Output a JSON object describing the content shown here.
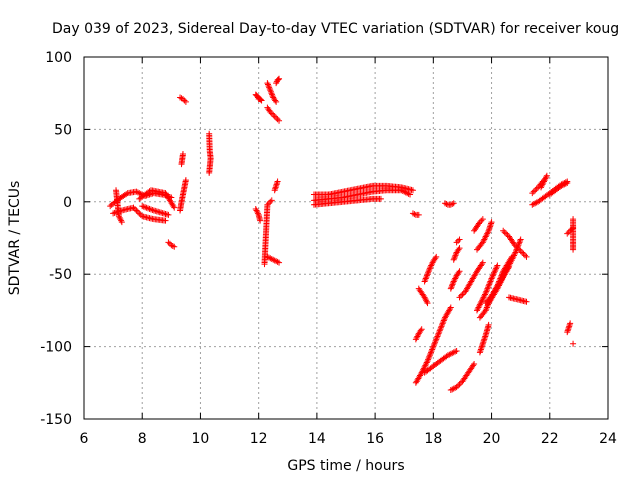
{
  "chart_data": {
    "type": "scatter",
    "title": "Day 039 of 2023, Sidereal Day-to-day VTEC variation (SDTVAR) for receiver koug",
    "xlabel": "GPS time / hours",
    "ylabel": "SDTVAR / TECUs",
    "xlim": [
      6,
      24
    ],
    "ylim": [
      -150,
      100
    ],
    "xticks": [
      6,
      8,
      10,
      12,
      14,
      16,
      18,
      20,
      22,
      24
    ],
    "yticks": [
      -150,
      -100,
      -50,
      0,
      50,
      100
    ],
    "grid": true,
    "marker": "+",
    "color": "#ff0000",
    "series": [
      {
        "name": "SDTVAR",
        "segments": [
          {
            "x": [
              6.9,
              7.2,
              7.5,
              7.8,
              8.1,
              8.4,
              8.7,
              9.0
            ],
            "y": [
              -3,
              2,
              6,
              7,
              4,
              6,
              5,
              3
            ]
          },
          {
            "x": [
              7.0,
              7.3,
              7.7,
              8.0,
              8.4,
              8.8
            ],
            "y": [
              -8,
              -6,
              -4,
              -10,
              -12,
              -13
            ]
          },
          {
            "x": [
              7.1,
              7.2,
              7.3
            ],
            "y": [
              8,
              -10,
              -14
            ]
          },
          {
            "x": [
              7.9,
              8.3,
              8.8,
              9.1
            ],
            "y": [
              2,
              8,
              6,
              -4
            ]
          },
          {
            "x": [
              8.0,
              8.4,
              8.9
            ],
            "y": [
              -3,
              -6,
              -9
            ]
          },
          {
            "x": [
              8.9,
              9.0,
              9.1
            ],
            "y": [
              -28,
              -30,
              -31
            ]
          },
          {
            "x": [
              9.3,
              9.35,
              9.4,
              9.45,
              9.5
            ],
            "y": [
              -6,
              0,
              5,
              10,
              15
            ]
          },
          {
            "x": [
              9.3,
              9.4,
              9.5
            ],
            "y": [
              72,
              71,
              69
            ]
          },
          {
            "x": [
              9.35,
              9.4
            ],
            "y": [
              26,
              33
            ]
          },
          {
            "x": [
              10.3,
              10.32,
              10.35,
              10.3
            ],
            "y": [
              47,
              35,
              30,
              20
            ]
          },
          {
            "x": [
              11.9,
              11.95,
              12.0,
              12.05,
              12.1
            ],
            "y": [
              74,
              73,
              71,
              71,
              70
            ]
          },
          {
            "x": [
              12.3,
              12.4,
              12.5,
              12.6
            ],
            "y": [
              82,
              77,
              72,
              69
            ]
          },
          {
            "x": [
              12.6,
              12.65,
              12.7
            ],
            "y": [
              82,
              84,
              85
            ]
          },
          {
            "x": [
              12.3,
              12.4,
              12.5,
              12.6,
              12.7
            ],
            "y": [
              65,
              62,
              60,
              58,
              56
            ]
          },
          {
            "x": [
              11.9,
              12.0,
              12.05
            ],
            "y": [
              -5,
              -9,
              -13
            ]
          },
          {
            "x": [
              12.3,
              12.4,
              12.5,
              12.6,
              12.7
            ],
            "y": [
              -38,
              -39,
              -40,
              -41,
              -42
            ]
          },
          {
            "x": [
              12.2,
              12.3,
              12.45
            ],
            "y": [
              -43,
              -2,
              1
            ]
          },
          {
            "x": [
              12.55,
              12.6,
              12.65
            ],
            "y": [
              8,
              11,
              14
            ]
          },
          {
            "x": [
              13.9,
              14.4,
              14.9,
              15.4,
              15.9,
              16.4,
              16.9,
              17.3
            ],
            "y": [
              5,
              5,
              7,
              9,
              11,
              11,
              10,
              8
            ]
          },
          {
            "x": [
              13.9,
              14.4,
              14.9,
              15.4,
              15.9,
              16.2
            ],
            "y": [
              -2,
              -1,
              0,
              1,
              2,
              2
            ]
          },
          {
            "x": [
              13.9,
              14.4,
              14.9,
              15.4,
              15.9,
              16.4,
              16.9,
              17.2
            ],
            "y": [
              1,
              2,
              3,
              5,
              7,
              8,
              8,
              5
            ]
          },
          {
            "x": [
              17.3,
              17.4,
              17.5
            ],
            "y": [
              -8,
              -9,
              -9
            ]
          },
          {
            "x": [
              18.4,
              18.5,
              18.6,
              18.7
            ],
            "y": [
              -1,
              -2,
              -2,
              -1
            ]
          },
          {
            "x": [
              17.7,
              17.8,
              17.9,
              18.0,
              18.1
            ],
            "y": [
              -55,
              -50,
              -45,
              -41,
              -38
            ]
          },
          {
            "x": [
              17.5,
              17.6,
              17.7,
              17.8
            ],
            "y": [
              -60,
              -63,
              -66,
              -70
            ]
          },
          {
            "x": [
              17.4,
              17.5,
              17.6
            ],
            "y": [
              -95,
              -91,
              -88
            ]
          },
          {
            "x": [
              17.4,
              17.6,
              17.8,
              18.0,
              18.2,
              18.4,
              18.6
            ],
            "y": [
              -125,
              -118,
              -110,
              -100,
              -90,
              -80,
              -73
            ]
          },
          {
            "x": [
              17.7,
              17.9,
              18.1,
              18.3,
              18.5,
              18.8
            ],
            "y": [
              -118,
              -115,
              -112,
              -109,
              -106,
              -103
            ]
          },
          {
            "x": [
              18.6,
              18.8,
              19.0,
              19.2,
              19.4
            ],
            "y": [
              -130,
              -128,
              -124,
              -118,
              -112
            ]
          },
          {
            "x": [
              18.6,
              18.7,
              18.8,
              18.9
            ],
            "y": [
              -60,
              -55,
              -51,
              -48
            ]
          },
          {
            "x": [
              18.7,
              18.8,
              18.9
            ],
            "y": [
              -40,
              -35,
              -32
            ]
          },
          {
            "x": [
              18.8,
              18.9
            ],
            "y": [
              -28,
              -26
            ]
          },
          {
            "x": [
              18.9,
              19.1,
              19.3,
              19.5,
              19.7
            ],
            "y": [
              -66,
              -62,
              -55,
              -48,
              -42
            ]
          },
          {
            "x": [
              19.4,
              19.5,
              19.6,
              19.7
            ],
            "y": [
              -20,
              -17,
              -14,
              -12
            ]
          },
          {
            "x": [
              19.5,
              19.7,
              19.9,
              20.0
            ],
            "y": [
              -33,
              -28,
              -20,
              -14
            ]
          },
          {
            "x": [
              19.5,
              19.6,
              19.8,
              20.0,
              20.2
            ],
            "y": [
              -75,
              -71,
              -63,
              -53,
              -44
            ]
          },
          {
            "x": [
              19.6,
              19.8,
              20.0,
              20.3,
              20.6
            ],
            "y": [
              -80,
              -75,
              -65,
              -55,
              -45
            ]
          },
          {
            "x": [
              19.6,
              19.7,
              19.8,
              19.9
            ],
            "y": [
              -104,
              -98,
              -92,
              -85
            ]
          },
          {
            "x": [
              19.8,
              20.0,
              20.2,
              20.4,
              20.7
            ],
            "y": [
              -70,
              -65,
              -58,
              -48,
              -38
            ]
          },
          {
            "x": [
              19.9,
              20.2,
              20.5,
              20.8,
              21.0
            ],
            "y": [
              -70,
              -60,
              -48,
              -36,
              -26
            ]
          },
          {
            "x": [
              20.4,
              20.6,
              20.8,
              21.0,
              21.2
            ],
            "y": [
              -20,
              -24,
              -30,
              -34,
              -38
            ]
          },
          {
            "x": [
              20.6,
              20.8,
              21.0,
              21.2
            ],
            "y": [
              -66,
              -67,
              -68,
              -69
            ]
          },
          {
            "x": [
              21.4,
              21.6,
              21.8,
              22.0,
              22.2,
              22.4,
              22.6
            ],
            "y": [
              -2,
              0,
              3,
              6,
              9,
              12,
              14
            ]
          },
          {
            "x": [
              21.4,
              21.6,
              21.8
            ],
            "y": [
              6,
              10,
              15
            ]
          },
          {
            "x": [
              21.7,
              21.8,
              21.9
            ],
            "y": [
              10,
              14,
              18
            ]
          },
          {
            "x": [
              22.0,
              22.2,
              22.4,
              22.6
            ],
            "y": [
              5,
              8,
              11,
              13
            ]
          },
          {
            "x": [
              22.6,
              22.7,
              22.8
            ],
            "y": [
              -22,
              -20,
              -18
            ]
          },
          {
            "x": [
              22.8,
              22.8,
              22.8
            ],
            "y": [
              -12,
              -27,
              -33
            ]
          },
          {
            "x": [
              22.6,
              22.65,
              22.7
            ],
            "y": [
              -90,
              -87,
              -84
            ]
          },
          {
            "x": [
              22.8
            ],
            "y": [
              -98
            ]
          }
        ]
      }
    ]
  }
}
